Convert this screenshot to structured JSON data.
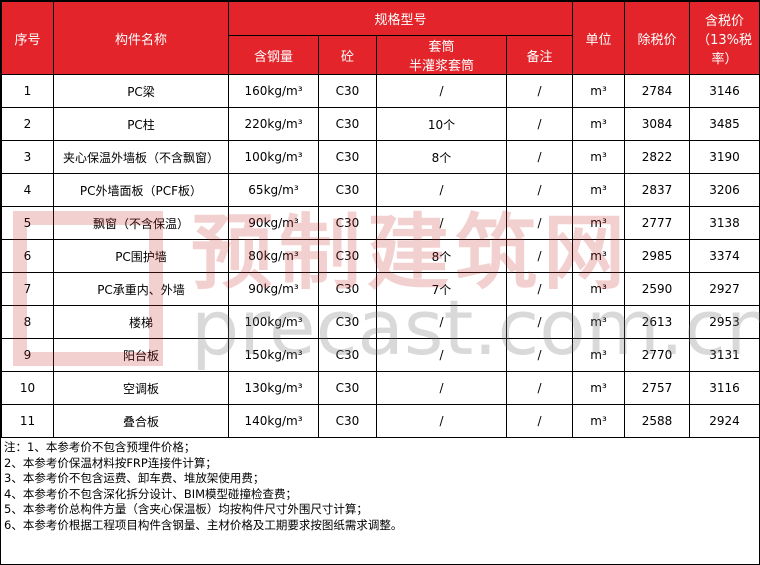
{
  "header": {
    "seq": "序号",
    "name": "构件名称",
    "spec": "规格型号",
    "steel": "含钢量",
    "concrete": "砼",
    "sleeve": "套筒\n半灌浆套筒",
    "remark": "备注",
    "unit": "单位",
    "price_ex_tax": "除税价",
    "price_tax": "含税价（13%税率）"
  },
  "table": {
    "rows": [
      [
        1,
        "PC梁",
        "160kg/m³",
        "C30",
        "/",
        "/",
        "m³",
        2784,
        3146
      ],
      [
        2,
        "PC柱",
        "220kg/m³",
        "C30",
        "10个",
        "/",
        "m³",
        3084,
        3485
      ],
      [
        3,
        "夹心保温外墙板（不含飘窗）",
        "100kg/m³",
        "C30",
        "8个",
        "/",
        "m³",
        2822,
        3190
      ],
      [
        4,
        "PC外墙面板（PCF板）",
        "65kg/m³",
        "C30",
        "/",
        "/",
        "m³",
        2837,
        3206
      ],
      [
        5,
        "飘窗（不含保温）",
        "90kg/m³",
        "C30",
        "/",
        "/",
        "m³",
        2777,
        3138
      ],
      [
        6,
        "PC围护墙",
        "80kg/m³",
        "C30",
        "8个",
        "/",
        "m³",
        2985,
        3374
      ],
      [
        7,
        "PC承重内、外墙",
        "90kg/m³",
        "C30",
        "7个",
        "/",
        "m³",
        2590,
        2927
      ],
      [
        8,
        "楼梯",
        "100kg/m³",
        "C30",
        "/",
        "/",
        "m³",
        2613,
        2953
      ],
      [
        9,
        "阳台板",
        "150kg/m³",
        "C30",
        "/",
        "/",
        "m³",
        2770,
        3131
      ],
      [
        10,
        "空调板",
        "130kg/m³",
        "C30",
        "/",
        "/",
        "m³",
        2757,
        3116
      ],
      [
        11,
        "叠合板",
        "140kg/m³",
        "C30",
        "/",
        "/",
        "m³",
        2588,
        2924
      ]
    ]
  },
  "notes": [
    "注：1、本参考价不包含预埋件价格；",
    "2、本参考价保温材料按FRP连接件计算；",
    "3、本参考价不包含运费、卸车费、堆放架使用费；",
    "4、本参考价不包含深化拆分设计、BIM模型碰撞检查费；",
    "5、本参考价总构件方量（含夹心保温板）均按构件尺寸外围尺寸计算；",
    "6、本参考价根据工程项目构件含钢量、主材价格及工期要求按图纸需求调整。"
  ],
  "watermark": {
    "cn": "预制建筑网",
    "en": "precast.com.cn"
  }
}
